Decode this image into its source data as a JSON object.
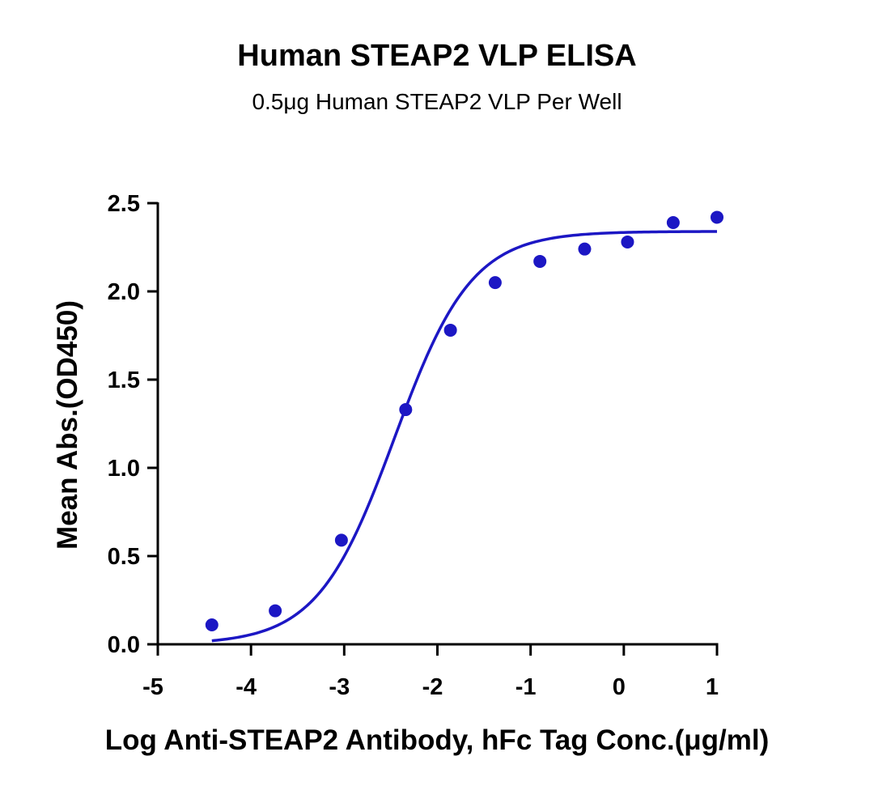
{
  "chart_data": {
    "type": "scatter",
    "title": "Human STEAP2 VLP ELISA",
    "subtitle": "0.5μg Human STEAP2 VLP Per Well",
    "xlabel": "Log Anti-STEAP2 Antibody, hFc Tag Conc.(μg/ml)",
    "ylabel": "Mean Abs.(OD450)",
    "xlim": [
      -5,
      1
    ],
    "ylim": [
      0,
      2.5
    ],
    "xticks": [
      "-5",
      "-4",
      "-3",
      "-2",
      "-1",
      "0",
      "1"
    ],
    "yticks": [
      "0.0",
      "0.5",
      "1.0",
      "1.5",
      "2.0",
      "2.5"
    ],
    "grid": false,
    "series": [
      {
        "color": "#1c17c4",
        "points": [
          {
            "x": -4.42,
            "y": 0.11
          },
          {
            "x": -3.74,
            "y": 0.19
          },
          {
            "x": -3.03,
            "y": 0.59
          },
          {
            "x": -2.34,
            "y": 1.33
          },
          {
            "x": -1.86,
            "y": 1.78
          },
          {
            "x": -1.38,
            "y": 2.05
          },
          {
            "x": -0.9,
            "y": 2.17
          },
          {
            "x": -0.42,
            "y": 2.24
          },
          {
            "x": 0.04,
            "y": 2.28
          },
          {
            "x": 0.53,
            "y": 2.39
          },
          {
            "x": 1.0,
            "y": 2.42
          }
        ],
        "fit": {
          "model": "4PL",
          "bottom": 0.0,
          "top": 2.34,
          "log_ec50": -2.46,
          "hill": 1.05,
          "x_from": -4.42,
          "x_to": 1.0
        }
      }
    ]
  }
}
